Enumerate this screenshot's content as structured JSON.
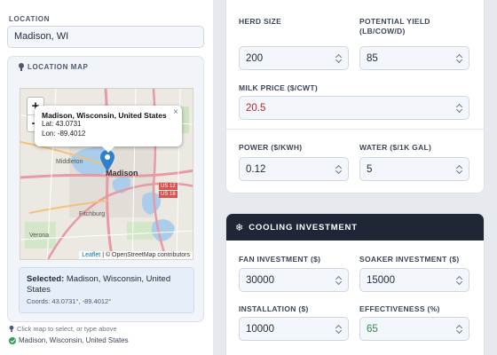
{
  "location": {
    "label": "LOCATION",
    "value": "Madison, WI",
    "map_title": "LOCATION MAP",
    "map": {
      "zoom_in": "+",
      "zoom_out": "−",
      "popup_title": "Madison, Wisconsin, United States",
      "popup_lat": "Lat: 43.0731",
      "popup_lon": "Lon: -89.4012",
      "popup_close": "×",
      "labels": {
        "middleton": "Middleton",
        "madison": "Madison",
        "fitchburg": "Fitchburg",
        "verona": "Verona",
        "us12": "US 12",
        "us18": "US 18"
      },
      "attribution_leaflet": "Leaflet",
      "attribution_rest": "| © OpenStreetMap contributors"
    },
    "selected_label": "Selected:",
    "selected_value": "Madison, Wisconsin, United States",
    "coords": "Coords: 43.0731°, -89.4012°",
    "hint": "Click map to select, or type above",
    "status": "Madison, Wisconsin, United States"
  },
  "inputs": {
    "herd_size": {
      "label": "HERD SIZE",
      "value": "200"
    },
    "potential_yield": {
      "label": "POTENTIAL YIELD (LB/COW/D)",
      "value": "85"
    },
    "milk_price": {
      "label": "MILK PRICE ($/CWT)",
      "value": "20.5"
    },
    "power": {
      "label": "POWER ($/KWH)",
      "value": "0.12"
    },
    "water": {
      "label": "WATER ($/1K GAL)",
      "value": "5"
    }
  },
  "cooling": {
    "title": "COOLING INVESTMENT",
    "fan": {
      "label": "FAN INVESTMENT ($)",
      "value": "30000"
    },
    "soaker": {
      "label": "SOAKER INVESTMENT ($)",
      "value": "15000"
    },
    "installation": {
      "label": "INSTALLATION ($)",
      "value": "10000"
    },
    "effectiveness": {
      "label": "EFFECTIVENESS (%)",
      "value": "65"
    }
  },
  "colors": {
    "milk_price_value": "#b3262b",
    "effectiveness_value": "#2e8a55",
    "section_header": "#1f2636",
    "marker": "#2f7fcf"
  },
  "icons": {
    "map_header": "map-pin-icon",
    "cooling_header": "snowflake-icon",
    "status": "check-circle-icon",
    "hint": "map-pin-icon"
  }
}
